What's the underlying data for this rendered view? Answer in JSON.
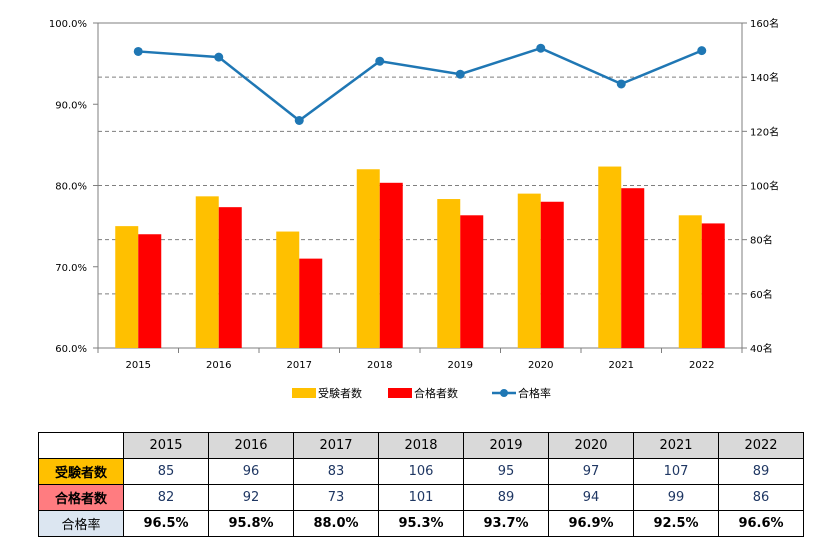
{
  "chart_data": {
    "type": "bar",
    "categories": [
      "2015",
      "2016",
      "2017",
      "2018",
      "2019",
      "2020",
      "2021",
      "2022"
    ],
    "series": [
      {
        "name": "受験者数",
        "type": "bar",
        "axis": "right",
        "values": [
          85,
          96,
          83,
          106,
          95,
          97,
          107,
          89
        ],
        "color": "#ffc000"
      },
      {
        "name": "合格者数",
        "type": "bar",
        "axis": "right",
        "values": [
          82,
          92,
          73,
          101,
          89,
          94,
          99,
          86
        ],
        "color": "#ff0000"
      },
      {
        "name": "合格率",
        "type": "line",
        "axis": "left",
        "values": [
          96.5,
          95.8,
          88.0,
          95.3,
          93.7,
          96.9,
          92.5,
          96.6
        ],
        "color": "#1f77b4"
      }
    ],
    "left_axis": {
      "ylim": [
        60,
        100
      ],
      "ticks": [
        "60.0%",
        "70.0%",
        "80.0%",
        "90.0%",
        "100.0%"
      ]
    },
    "right_axis": {
      "ylim": [
        40,
        160
      ],
      "ticks": [
        "40名",
        "60名",
        "80名",
        "100名",
        "120名",
        "140名",
        "160名"
      ]
    },
    "grid": "dashed horizontal",
    "legend_position": "bottom"
  },
  "table": {
    "years": [
      "2015",
      "2016",
      "2017",
      "2018",
      "2019",
      "2020",
      "2021",
      "2022"
    ],
    "rows": [
      {
        "label": "受験者数",
        "values": [
          "85",
          "96",
          "83",
          "106",
          "95",
          "97",
          "107",
          "89"
        ],
        "bg": "#ffc000"
      },
      {
        "label": "合格者数",
        "values": [
          "82",
          "92",
          "73",
          "101",
          "89",
          "94",
          "99",
          "86"
        ],
        "bg": "#ff7c80"
      },
      {
        "label": "合格率",
        "values": [
          "96.5%",
          "95.8%",
          "88.0%",
          "95.3%",
          "93.7%",
          "96.9%",
          "92.5%",
          "96.6%"
        ],
        "bg": "#dce6f1"
      }
    ]
  }
}
